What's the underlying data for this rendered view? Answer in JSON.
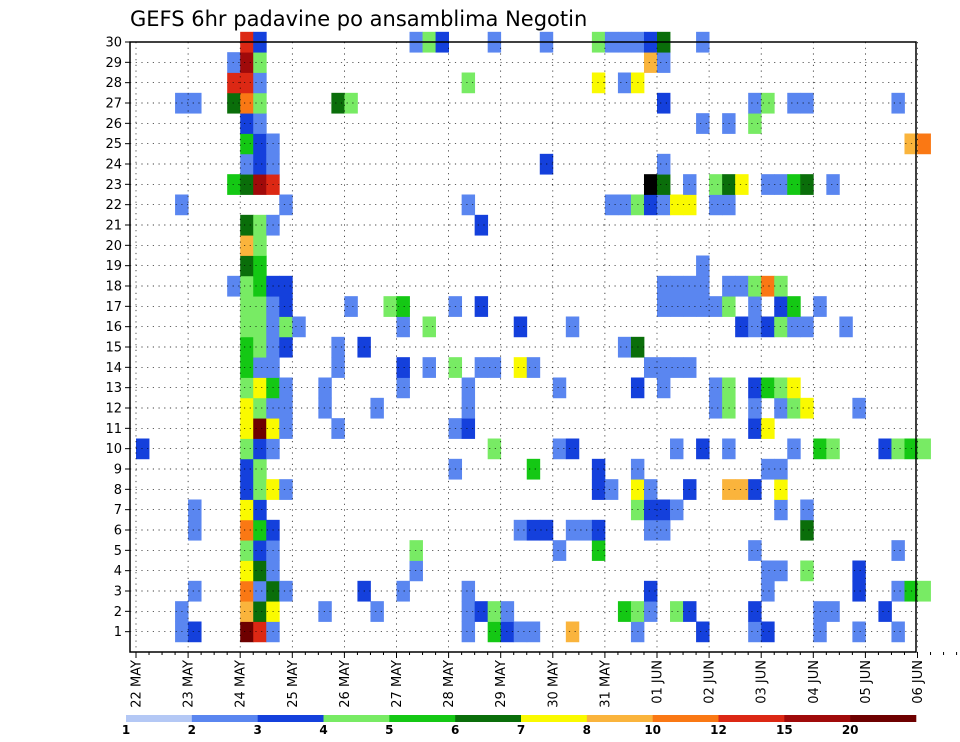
{
  "chart_data": {
    "type": "heatmap",
    "title": "GEFS 6hr padavine po ansamblima Negotin",
    "y_ticks": [
      "1",
      "2",
      "3",
      "4",
      "5",
      "6",
      "7",
      "8",
      "9",
      "10",
      "11",
      "12",
      "13",
      "14",
      "15",
      "16",
      "17",
      "18",
      "19",
      "20",
      "21",
      "22",
      "23",
      "24",
      "25",
      "26",
      "27",
      "28",
      "29",
      "30"
    ],
    "x_ticks": [
      "22 MAY",
      "23 MAY",
      "24 MAY",
      "25 MAY",
      "26 MAY",
      "27 MAY",
      "28 MAY",
      "29 MAY",
      "30 MAY",
      "31 MAY",
      "01 JUN",
      "02 JUN",
      "03 JUN",
      "04 JUN",
      "05 JUN",
      "06 JUN"
    ],
    "grid": true,
    "legend_placement": "bottom",
    "legend": {
      "labels": [
        "1",
        "2",
        "3",
        "4",
        "5",
        "6",
        "7",
        "8",
        "10",
        "12",
        "15",
        "20"
      ],
      "colors": [
        "#b4c8f5",
        "#5a86f0",
        "#1440dc",
        "#78eb64",
        "#14c814",
        "#0a6e0a",
        "#fafa00",
        "#fab43c",
        "#fa7814",
        "#dc2814",
        "#a00a0a",
        "#6e0000"
      ]
    },
    "cells": [
      [
        1,
        3,
        1
      ],
      [
        1,
        4,
        2
      ],
      [
        1,
        8,
        11
      ],
      [
        1,
        9,
        9
      ],
      [
        1,
        10,
        1
      ],
      [
        1,
        25,
        1
      ],
      [
        1,
        27,
        4
      ],
      [
        1,
        28,
        2
      ],
      [
        1,
        29,
        1
      ],
      [
        1,
        30,
        1
      ],
      [
        1,
        33,
        7
      ],
      [
        1,
        38,
        1
      ],
      [
        1,
        43,
        2
      ],
      [
        1,
        47,
        1
      ],
      [
        1,
        48,
        2
      ],
      [
        1,
        52,
        1
      ],
      [
        1,
        55,
        1
      ],
      [
        1,
        58,
        1
      ],
      [
        2,
        3,
        1
      ],
      [
        2,
        8,
        7
      ],
      [
        2,
        9,
        5
      ],
      [
        2,
        10,
        6
      ],
      [
        2,
        14,
        1
      ],
      [
        2,
        18,
        1
      ],
      [
        2,
        25,
        1
      ],
      [
        2,
        26,
        2
      ],
      [
        2,
        27,
        3
      ],
      [
        2,
        28,
        1
      ],
      [
        2,
        37,
        4
      ],
      [
        2,
        38,
        3
      ],
      [
        2,
        39,
        1
      ],
      [
        2,
        41,
        3
      ],
      [
        2,
        42,
        2
      ],
      [
        2,
        47,
        2
      ],
      [
        2,
        52,
        1
      ],
      [
        2,
        53,
        1
      ],
      [
        2,
        57,
        2
      ],
      [
        3,
        4,
        1
      ],
      [
        3,
        8,
        8
      ],
      [
        3,
        9,
        1
      ],
      [
        3,
        10,
        5
      ],
      [
        3,
        11,
        1
      ],
      [
        3,
        17,
        2
      ],
      [
        3,
        20,
        1
      ],
      [
        3,
        25,
        1
      ],
      [
        3,
        39,
        2
      ],
      [
        3,
        48,
        1
      ],
      [
        3,
        55,
        2
      ],
      [
        3,
        58,
        1
      ],
      [
        3,
        59,
        4
      ],
      [
        3,
        60,
        3
      ],
      [
        4,
        8,
        6
      ],
      [
        4,
        9,
        5
      ],
      [
        4,
        10,
        1
      ],
      [
        4,
        21,
        1
      ],
      [
        4,
        48,
        1
      ],
      [
        4,
        49,
        1
      ],
      [
        4,
        51,
        3
      ],
      [
        4,
        55,
        2
      ],
      [
        5,
        8,
        3
      ],
      [
        5,
        9,
        2
      ],
      [
        5,
        10,
        1
      ],
      [
        5,
        21,
        3
      ],
      [
        5,
        32,
        1
      ],
      [
        5,
        35,
        4
      ],
      [
        5,
        47,
        1
      ],
      [
        5,
        58,
        1
      ],
      [
        6,
        4,
        1
      ],
      [
        6,
        8,
        8
      ],
      [
        6,
        9,
        4
      ],
      [
        6,
        10,
        2
      ],
      [
        6,
        29,
        1
      ],
      [
        6,
        30,
        2
      ],
      [
        6,
        31,
        2
      ],
      [
        6,
        33,
        1
      ],
      [
        6,
        34,
        1
      ],
      [
        6,
        35,
        2
      ],
      [
        6,
        39,
        1
      ],
      [
        6,
        40,
        1
      ],
      [
        6,
        51,
        5
      ],
      [
        7,
        4,
        1
      ],
      [
        7,
        8,
        6
      ],
      [
        7,
        9,
        2
      ],
      [
        7,
        38,
        3
      ],
      [
        7,
        39,
        2
      ],
      [
        7,
        40,
        2
      ],
      [
        7,
        41,
        1
      ],
      [
        7,
        49,
        1
      ],
      [
        7,
        51,
        1
      ],
      [
        8,
        8,
        2
      ],
      [
        8,
        9,
        3
      ],
      [
        8,
        10,
        6
      ],
      [
        8,
        11,
        1
      ],
      [
        8,
        35,
        2
      ],
      [
        8,
        36,
        1
      ],
      [
        8,
        38,
        6
      ],
      [
        8,
        39,
        1
      ],
      [
        8,
        42,
        2
      ],
      [
        8,
        45,
        7
      ],
      [
        8,
        46,
        7
      ],
      [
        8,
        47,
        2
      ],
      [
        8,
        49,
        6
      ],
      [
        9,
        8,
        2
      ],
      [
        9,
        9,
        3
      ],
      [
        9,
        24,
        1
      ],
      [
        9,
        30,
        4
      ],
      [
        9,
        35,
        2
      ],
      [
        9,
        38,
        1
      ],
      [
        9,
        48,
        1
      ],
      [
        9,
        49,
        1
      ],
      [
        10,
        0,
        2
      ],
      [
        10,
        8,
        3
      ],
      [
        10,
        9,
        2
      ],
      [
        10,
        10,
        1
      ],
      [
        10,
        27,
        3
      ],
      [
        10,
        32,
        1
      ],
      [
        10,
        33,
        2
      ],
      [
        10,
        41,
        1
      ],
      [
        10,
        43,
        2
      ],
      [
        10,
        45,
        1
      ],
      [
        10,
        50,
        1
      ],
      [
        10,
        52,
        4
      ],
      [
        10,
        53,
        3
      ],
      [
        10,
        57,
        2
      ],
      [
        10,
        58,
        3
      ],
      [
        10,
        59,
        4
      ],
      [
        10,
        60,
        3
      ],
      [
        11,
        8,
        6
      ],
      [
        11,
        9,
        11
      ],
      [
        11,
        10,
        6
      ],
      [
        11,
        11,
        1
      ],
      [
        11,
        15,
        1
      ],
      [
        11,
        24,
        1
      ],
      [
        11,
        25,
        2
      ],
      [
        11,
        47,
        2
      ],
      [
        11,
        48,
        6
      ],
      [
        12,
        8,
        6
      ],
      [
        12,
        9,
        3
      ],
      [
        12,
        10,
        1
      ],
      [
        12,
        11,
        1
      ],
      [
        12,
        14,
        1
      ],
      [
        12,
        18,
        1
      ],
      [
        12,
        25,
        1
      ],
      [
        12,
        44,
        1
      ],
      [
        12,
        45,
        3
      ],
      [
        12,
        47,
        1
      ],
      [
        12,
        49,
        1
      ],
      [
        12,
        50,
        3
      ],
      [
        12,
        51,
        6
      ],
      [
        12,
        55,
        1
      ],
      [
        13,
        8,
        3
      ],
      [
        13,
        9,
        6
      ],
      [
        13,
        10,
        4
      ],
      [
        13,
        11,
        1
      ],
      [
        13,
        14,
        1
      ],
      [
        13,
        20,
        1
      ],
      [
        13,
        25,
        1
      ],
      [
        13,
        32,
        1
      ],
      [
        13,
        38,
        2
      ],
      [
        13,
        40,
        1
      ],
      [
        13,
        44,
        1
      ],
      [
        13,
        45,
        3
      ],
      [
        13,
        47,
        2
      ],
      [
        13,
        48,
        4
      ],
      [
        13,
        49,
        3
      ],
      [
        13,
        50,
        6
      ],
      [
        14,
        8,
        4
      ],
      [
        14,
        9,
        1
      ],
      [
        14,
        10,
        1
      ],
      [
        14,
        15,
        1
      ],
      [
        14,
        20,
        2
      ],
      [
        14,
        22,
        1
      ],
      [
        14,
        24,
        3
      ],
      [
        14,
        26,
        1
      ],
      [
        14,
        27,
        1
      ],
      [
        14,
        29,
        6
      ],
      [
        14,
        30,
        1
      ],
      [
        14,
        39,
        1
      ],
      [
        14,
        40,
        1
      ],
      [
        14,
        41,
        1
      ],
      [
        14,
        42,
        1
      ],
      [
        15,
        8,
        4
      ],
      [
        15,
        9,
        3
      ],
      [
        15,
        10,
        1
      ],
      [
        15,
        11,
        2
      ],
      [
        15,
        15,
        1
      ],
      [
        15,
        17,
        2
      ],
      [
        15,
        37,
        1
      ],
      [
        15,
        38,
        5
      ],
      [
        16,
        8,
        3
      ],
      [
        16,
        9,
        3
      ],
      [
        16,
        10,
        1
      ],
      [
        16,
        11,
        3
      ],
      [
        16,
        12,
        1
      ],
      [
        16,
        20,
        1
      ],
      [
        16,
        22,
        3
      ],
      [
        16,
        29,
        2
      ],
      [
        16,
        33,
        1
      ],
      [
        16,
        46,
        2
      ],
      [
        16,
        47,
        1
      ],
      [
        16,
        48,
        2
      ],
      [
        16,
        49,
        3
      ],
      [
        16,
        50,
        1
      ],
      [
        16,
        51,
        1
      ],
      [
        16,
        54,
        1
      ],
      [
        17,
        8,
        3
      ],
      [
        17,
        9,
        3
      ],
      [
        17,
        10,
        1
      ],
      [
        17,
        11,
        2
      ],
      [
        17,
        16,
        1
      ],
      [
        17,
        19,
        3
      ],
      [
        17,
        20,
        4
      ],
      [
        17,
        24,
        1
      ],
      [
        17,
        26,
        2
      ],
      [
        17,
        40,
        1
      ],
      [
        17,
        41,
        1
      ],
      [
        17,
        42,
        1
      ],
      [
        17,
        43,
        1
      ],
      [
        17,
        44,
        1
      ],
      [
        17,
        45,
        3
      ],
      [
        17,
        47,
        1
      ],
      [
        17,
        49,
        2
      ],
      [
        17,
        50,
        4
      ],
      [
        17,
        52,
        1
      ],
      [
        18,
        7,
        1
      ],
      [
        18,
        8,
        3
      ],
      [
        18,
        9,
        4
      ],
      [
        18,
        10,
        2
      ],
      [
        18,
        11,
        2
      ],
      [
        18,
        40,
        1
      ],
      [
        18,
        41,
        1
      ],
      [
        18,
        42,
        1
      ],
      [
        18,
        43,
        1
      ],
      [
        18,
        45,
        1
      ],
      [
        18,
        46,
        1
      ],
      [
        18,
        47,
        3
      ],
      [
        18,
        48,
        8
      ],
      [
        18,
        49,
        3
      ],
      [
        19,
        8,
        5
      ],
      [
        19,
        9,
        4
      ],
      [
        19,
        43,
        1
      ],
      [
        20,
        8,
        7
      ],
      [
        20,
        9,
        3
      ],
      [
        21,
        8,
        5
      ],
      [
        21,
        9,
        3
      ],
      [
        21,
        10,
        1
      ],
      [
        21,
        26,
        2
      ],
      [
        22,
        3,
        1
      ],
      [
        22,
        11,
        1
      ],
      [
        22,
        25,
        1
      ],
      [
        22,
        36,
        1
      ],
      [
        22,
        37,
        1
      ],
      [
        22,
        38,
        3
      ],
      [
        22,
        39,
        2
      ],
      [
        22,
        40,
        1
      ],
      [
        22,
        41,
        6
      ],
      [
        22,
        42,
        6
      ],
      [
        22,
        44,
        1
      ],
      [
        22,
        45,
        1
      ],
      [
        23,
        7,
        4
      ],
      [
        23,
        8,
        5
      ],
      [
        23,
        9,
        10
      ],
      [
        23,
        10,
        9
      ],
      [
        23,
        39,
        12
      ],
      [
        23,
        40,
        5
      ],
      [
        23,
        42,
        1
      ],
      [
        23,
        44,
        3
      ],
      [
        23,
        45,
        5
      ],
      [
        23,
        46,
        6
      ],
      [
        23,
        48,
        1
      ],
      [
        23,
        49,
        1
      ],
      [
        23,
        50,
        4
      ],
      [
        23,
        51,
        5
      ],
      [
        23,
        53,
        1
      ],
      [
        24,
        8,
        1
      ],
      [
        24,
        9,
        2
      ],
      [
        24,
        10,
        1
      ],
      [
        24,
        31,
        2
      ],
      [
        24,
        40,
        1
      ],
      [
        25,
        8,
        4
      ],
      [
        25,
        9,
        2
      ],
      [
        25,
        10,
        1
      ],
      [
        25,
        59,
        7
      ],
      [
        25,
        60,
        8
      ],
      [
        26,
        8,
        2
      ],
      [
        26,
        9,
        1
      ],
      [
        26,
        43,
        1
      ],
      [
        26,
        45,
        1
      ],
      [
        26,
        47,
        3
      ],
      [
        27,
        3,
        1
      ],
      [
        27,
        4,
        1
      ],
      [
        27,
        7,
        5
      ],
      [
        27,
        8,
        8
      ],
      [
        27,
        9,
        3
      ],
      [
        27,
        15,
        5
      ],
      [
        27,
        16,
        3
      ],
      [
        27,
        40,
        2
      ],
      [
        27,
        47,
        1
      ],
      [
        27,
        48,
        3
      ],
      [
        27,
        50,
        1
      ],
      [
        27,
        51,
        1
      ],
      [
        27,
        58,
        1
      ],
      [
        28,
        7,
        9
      ],
      [
        28,
        8,
        9
      ],
      [
        28,
        9,
        1
      ],
      [
        28,
        25,
        3
      ],
      [
        28,
        35,
        6
      ],
      [
        28,
        37,
        1
      ],
      [
        28,
        38,
        6
      ],
      [
        29,
        7,
        1
      ],
      [
        29,
        8,
        10
      ],
      [
        29,
        9,
        3
      ],
      [
        29,
        39,
        7
      ],
      [
        29,
        40,
        1
      ],
      [
        30,
        8,
        9
      ],
      [
        30,
        9,
        2
      ],
      [
        30,
        21,
        1
      ],
      [
        30,
        22,
        3
      ],
      [
        30,
        23,
        2
      ],
      [
        30,
        27,
        1
      ],
      [
        30,
        31,
        1
      ],
      [
        30,
        35,
        3
      ],
      [
        30,
        36,
        1
      ],
      [
        30,
        37,
        1
      ],
      [
        30,
        38,
        1
      ],
      [
        30,
        39,
        2
      ],
      [
        30,
        40,
        5
      ],
      [
        30,
        43,
        1
      ]
    ]
  }
}
